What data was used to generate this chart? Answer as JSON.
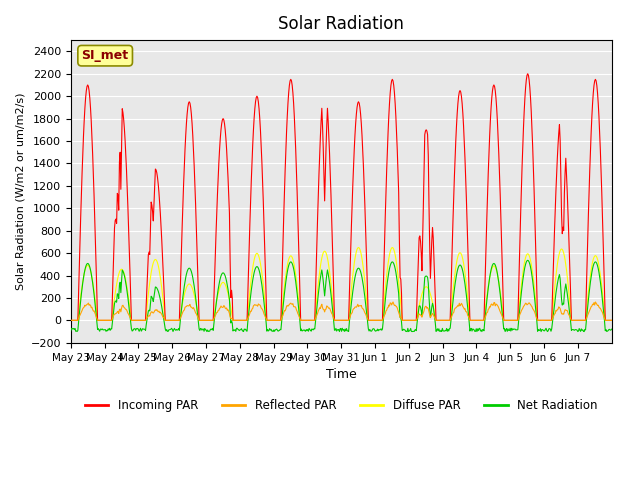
{
  "title": "Solar Radiation",
  "ylabel": "Solar Radiation (W/m2 or um/m2/s)",
  "xlabel": "Time",
  "ylim": [
    -200,
    2500
  ],
  "yticks": [
    -200,
    0,
    200,
    400,
    600,
    800,
    1000,
    1200,
    1400,
    1600,
    1800,
    2000,
    2200,
    2400
  ],
  "site_label": "SI_met",
  "colors": {
    "incoming": "#FF0000",
    "reflected": "#FFA500",
    "diffuse": "#FFFF00",
    "net": "#00CC00"
  },
  "legend": [
    "Incoming PAR",
    "Reflected PAR",
    "Diffuse PAR",
    "Net Radiation"
  ],
  "x_tick_labels": [
    "May 23",
    "May 24",
    "May 25",
    "May 26",
    "May 27",
    "May 28",
    "May 29",
    "May 30",
    "May 31",
    "Jun 1",
    "Jun 2",
    "Jun 3",
    "Jun 4",
    "Jun 5",
    "Jun 6",
    "Jun 7"
  ],
  "num_days": 16,
  "background_color": "#E8E8E8",
  "fig_background": "#FFFFFF",
  "incoming_peaks": [
    2100,
    1900,
    1350,
    1950,
    1800,
    2000,
    2150,
    2100,
    1950,
    2150,
    1700,
    2050,
    2100,
    2200,
    1850,
    2150
  ]
}
